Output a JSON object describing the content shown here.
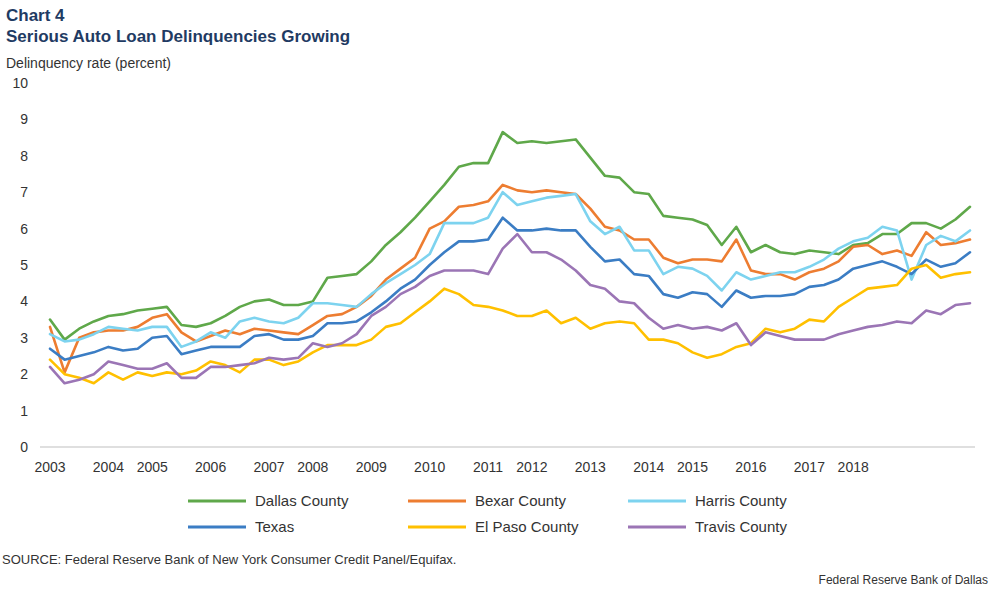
{
  "chart_data": {
    "type": "line",
    "title": "Chart 4",
    "subtitle": "Serious Auto Loan Delinquencies Growing",
    "y_label": "Delinquency rate (percent)",
    "source": "SOURCE: Federal Reserve Bank of New York Consumer Credit Panel/Equifax.",
    "credit": "Federal Reserve Bank of Dallas",
    "categories": [
      "2003",
      null,
      null,
      null,
      "2004",
      null,
      null,
      "2005",
      null,
      null,
      null,
      "2006",
      null,
      null,
      null,
      "2007",
      null,
      null,
      "2008",
      null,
      null,
      null,
      "2009",
      null,
      null,
      null,
      "2010",
      null,
      null,
      null,
      "2011",
      null,
      null,
      "2012",
      null,
      null,
      null,
      "2013",
      null,
      null,
      null,
      "2014",
      null,
      null,
      "2015",
      null,
      null,
      null,
      "2016",
      null,
      null,
      null,
      "2017",
      null,
      null,
      "2018",
      null,
      null,
      null,
      null,
      null,
      null,
      null,
      null
    ],
    "series": [
      {
        "name": "Dallas County",
        "color": "#5fa84a",
        "values": [
          3.5,
          2.95,
          3.25,
          3.45,
          3.6,
          3.65,
          3.75,
          3.8,
          3.85,
          3.35,
          3.3,
          3.4,
          3.6,
          3.85,
          4.0,
          4.05,
          3.9,
          3.9,
          4.0,
          4.65,
          4.7,
          4.75,
          5.1,
          5.55,
          5.9,
          6.3,
          6.75,
          7.2,
          7.7,
          7.8,
          7.8,
          8.65,
          8.35,
          8.4,
          8.35,
          8.4,
          8.45,
          7.95,
          7.45,
          7.4,
          7.0,
          6.95,
          6.35,
          6.3,
          6.25,
          6.1,
          5.55,
          6.05,
          5.35,
          5.55,
          5.35,
          5.3,
          5.4,
          5.35,
          5.3,
          5.55,
          5.6,
          5.85,
          5.85,
          6.15,
          6.15,
          6.0,
          6.25,
          6.6
        ]
      },
      {
        "name": "Bexar County",
        "color": "#ed7d31",
        "values": [
          3.3,
          2.05,
          3.0,
          3.15,
          3.2,
          3.2,
          3.3,
          3.55,
          3.65,
          3.15,
          2.9,
          3.05,
          3.2,
          3.1,
          3.25,
          3.2,
          3.15,
          3.1,
          3.35,
          3.6,
          3.65,
          3.85,
          4.15,
          4.6,
          4.9,
          5.2,
          6.0,
          6.2,
          6.6,
          6.65,
          6.75,
          7.2,
          7.05,
          7.0,
          7.05,
          7.0,
          6.95,
          6.55,
          6.05,
          5.95,
          5.7,
          5.7,
          5.2,
          5.05,
          5.15,
          5.15,
          5.1,
          5.7,
          4.85,
          4.75,
          4.75,
          4.6,
          4.8,
          4.9,
          5.1,
          5.5,
          5.55,
          5.3,
          5.4,
          5.25,
          5.9,
          5.55,
          5.6,
          5.7
        ]
      },
      {
        "name": "Harris County",
        "color": "#7dd3ef",
        "values": [
          3.1,
          2.9,
          2.95,
          3.1,
          3.3,
          3.25,
          3.2,
          3.3,
          3.3,
          2.75,
          2.9,
          3.15,
          3.0,
          3.45,
          3.55,
          3.45,
          3.4,
          3.55,
          3.95,
          3.95,
          3.9,
          3.85,
          4.2,
          4.5,
          4.75,
          5.0,
          5.3,
          6.15,
          6.15,
          6.15,
          6.3,
          7.0,
          6.65,
          6.75,
          6.85,
          6.9,
          6.95,
          6.2,
          5.85,
          6.05,
          5.4,
          5.4,
          4.75,
          4.95,
          4.9,
          4.7,
          4.3,
          4.8,
          4.6,
          4.7,
          4.8,
          4.8,
          4.95,
          5.15,
          5.45,
          5.65,
          5.75,
          6.05,
          5.95,
          4.6,
          5.55,
          5.8,
          5.65,
          5.95
        ]
      },
      {
        "name": "Texas",
        "color": "#3b7dc4",
        "values": [
          2.7,
          2.4,
          2.5,
          2.6,
          2.75,
          2.65,
          2.7,
          3.0,
          3.05,
          2.55,
          2.65,
          2.75,
          2.75,
          2.75,
          3.05,
          3.1,
          2.95,
          2.95,
          3.05,
          3.4,
          3.4,
          3.45,
          3.7,
          4.0,
          4.35,
          4.6,
          5.0,
          5.35,
          5.65,
          5.65,
          5.7,
          6.3,
          5.95,
          5.95,
          6.0,
          5.95,
          5.95,
          5.5,
          5.1,
          5.15,
          4.75,
          4.7,
          4.2,
          4.1,
          4.25,
          4.2,
          3.85,
          4.3,
          4.1,
          4.15,
          4.15,
          4.2,
          4.4,
          4.45,
          4.6,
          4.9,
          5.0,
          5.1,
          4.95,
          4.75,
          5.15,
          4.95,
          5.05,
          5.35
        ]
      },
      {
        "name": "El Paso County",
        "color": "#ffc000",
        "values": [
          2.4,
          2.0,
          1.9,
          1.75,
          2.05,
          1.85,
          2.05,
          1.95,
          2.05,
          2.0,
          2.1,
          2.35,
          2.25,
          2.05,
          2.4,
          2.4,
          2.25,
          2.35,
          2.6,
          2.8,
          2.8,
          2.8,
          2.95,
          3.3,
          3.4,
          3.7,
          4.0,
          4.35,
          4.2,
          3.9,
          3.85,
          3.75,
          3.6,
          3.6,
          3.75,
          3.4,
          3.55,
          3.25,
          3.4,
          3.45,
          3.4,
          2.95,
          2.95,
          2.85,
          2.6,
          2.45,
          2.55,
          2.75,
          2.85,
          3.25,
          3.15,
          3.25,
          3.5,
          3.45,
          3.85,
          4.1,
          4.35,
          4.4,
          4.45,
          4.9,
          5.0,
          4.65,
          4.75,
          4.8
        ]
      },
      {
        "name": "Travis County",
        "color": "#9b75b5",
        "values": [
          2.2,
          1.75,
          1.85,
          2.0,
          2.35,
          2.25,
          2.15,
          2.15,
          2.3,
          1.9,
          1.9,
          2.2,
          2.2,
          2.25,
          2.3,
          2.45,
          2.4,
          2.45,
          2.85,
          2.75,
          2.85,
          3.1,
          3.6,
          3.85,
          4.2,
          4.4,
          4.7,
          4.85,
          4.85,
          4.85,
          4.75,
          5.45,
          5.85,
          5.35,
          5.35,
          5.15,
          4.85,
          4.45,
          4.35,
          4.0,
          3.95,
          3.55,
          3.25,
          3.35,
          3.25,
          3.3,
          3.2,
          3.4,
          2.8,
          3.15,
          3.05,
          2.95,
          2.95,
          2.95,
          3.1,
          3.2,
          3.3,
          3.35,
          3.45,
          3.4,
          3.75,
          3.65,
          3.9,
          3.95
        ]
      }
    ],
    "ylim": [
      0,
      10
    ],
    "yticks": [
      0,
      1,
      2,
      3,
      4,
      5,
      6,
      7,
      8,
      9,
      10
    ],
    "grid": false,
    "legend": "bottom"
  }
}
